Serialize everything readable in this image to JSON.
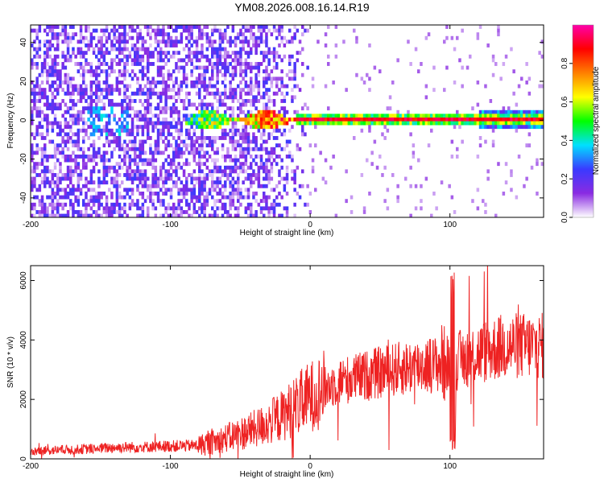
{
  "figure_title": "YM08.2026.008.16.14.R19",
  "chart_data": [
    {
      "type": "heatmap",
      "title": "YM08.2026.008.16.14.R19",
      "xlabel": "Height of straight line (km)",
      "ylabel": "Frequency (Hz)",
      "xlim": [
        -200,
        167
      ],
      "ylim": [
        -50,
        49
      ],
      "x_ticks": [
        -200,
        -100,
        0,
        100
      ],
      "y_ticks": [
        -40,
        -20,
        0,
        20,
        40
      ],
      "colorbar": {
        "label": "Normalized spectral amplitude",
        "range": [
          0.0,
          1.0
        ],
        "ticks": [
          0.0,
          0.2,
          0.4,
          0.6,
          0.8
        ],
        "tick_labels": [
          "0.0",
          "0.2",
          "0.4",
          "0.6",
          "0.8"
        ],
        "colormap": [
          "#ffffff",
          "#8a2be2",
          "#3a3aff",
          "#00e0ff",
          "#00ff00",
          "#ffff00",
          "#ff8000",
          "#ff0000",
          "#ff00aa"
        ]
      },
      "features": [
        {
          "label": "broadband noise",
          "x_range": [
            -200,
            -30
          ],
          "freq_range": [
            -50,
            49
          ],
          "amplitude": 0.1
        },
        {
          "label": "emerging signal",
          "x_range": [
            -90,
            -20
          ],
          "freq_range": [
            -6,
            6
          ],
          "amplitude": 0.4
        },
        {
          "label": "tonal line",
          "x_range": [
            -10,
            167
          ],
          "freq_center": 0,
          "amplitude": 0.95
        }
      ]
    },
    {
      "type": "line",
      "xlabel": "Height of straight line (km)",
      "ylabel": "SNR (10 * v/v)",
      "xlim": [
        -200,
        167
      ],
      "ylim": [
        0,
        6500
      ],
      "x_ticks": [
        -200,
        -100,
        0,
        100
      ],
      "y_ticks": [
        0,
        2000,
        4000,
        6000
      ],
      "series": [
        {
          "name": "SNR",
          "color": "#ee2222",
          "x": [
            -200,
            -180,
            -160,
            -140,
            -120,
            -100,
            -80,
            -70,
            -60,
            -50,
            -40,
            -30,
            -20,
            -10,
            0,
            10,
            20,
            40,
            60,
            80,
            95,
            100,
            105,
            120,
            140,
            167
          ],
          "y": [
            250,
            300,
            330,
            380,
            400,
            430,
            450,
            550,
            700,
            850,
            1000,
            1200,
            1450,
            1800,
            2100,
            2350,
            2600,
            2800,
            3000,
            3150,
            3200,
            3250,
            3300,
            3550,
            3800,
            3800
          ]
        }
      ]
    }
  ]
}
